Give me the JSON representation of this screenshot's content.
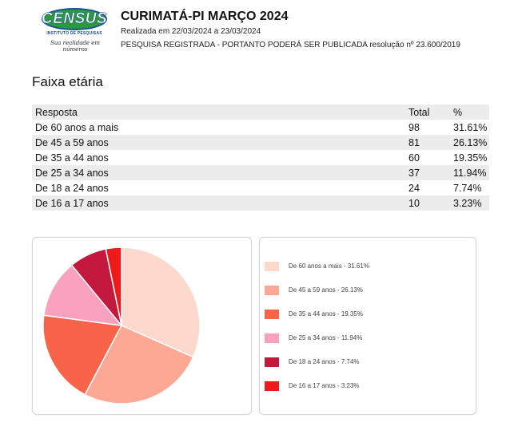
{
  "header": {
    "logo_text": "CENSUS",
    "logo_subtitle": "INSTITUTO DE PESQUISAS",
    "logo_tagline": "Sua realidade em números",
    "title": "CURIMATÁ-PI MARÇO 2024",
    "dates": "Realizada em 22/03/2024 a 23/03/2024",
    "registration": "PESQUISA REGISTRADA - PORTANTO PODERÁ SER PUBLICADA resolução nº 23.600/2019"
  },
  "section_title": "Faixa etária",
  "table": {
    "headers": [
      "Resposta",
      "Total",
      "%"
    ],
    "rows": [
      {
        "resposta": "De 60 anos a mais",
        "total": "98",
        "pct": "31.61%"
      },
      {
        "resposta": "De 45 a 59 anos",
        "total": "81",
        "pct": "26.13%"
      },
      {
        "resposta": "De 35 a 44 anos",
        "total": "60",
        "pct": "19.35%"
      },
      {
        "resposta": "De 25 a 34 anos",
        "total": "37",
        "pct": "11.94%"
      },
      {
        "resposta": "De 18 a 24 anos",
        "total": "24",
        "pct": "7.74%"
      },
      {
        "resposta": "De 16 a 17 anos",
        "total": "10",
        "pct": "3.23%"
      }
    ]
  },
  "chart_data": {
    "type": "pie",
    "categories": [
      "De 60 anos a mais",
      "De 45 a 59 anos",
      "De 35 a 44 anos",
      "De 25 a 34 anos",
      "De 18 a 24 anos",
      "De 16 a 17 anos"
    ],
    "values": [
      31.61,
      26.13,
      19.35,
      11.94,
      7.74,
      3.23
    ],
    "colors": [
      "#fcd9cc",
      "#fca895",
      "#f7644a",
      "#fba1c0",
      "#c4193e",
      "#ef1b1b"
    ],
    "legend_labels": [
      "De 60 anos a mais - 31.61%",
      "De 45 a 59 anos - 26.13%",
      "De 35 a 44 anos - 19.35%",
      "De 25 a 34 anos - 11.94%",
      "De 18 a 24 anos - 7.74%",
      "De 16 a 17 anos - 3.23%"
    ],
    "legend_placement": "right"
  }
}
